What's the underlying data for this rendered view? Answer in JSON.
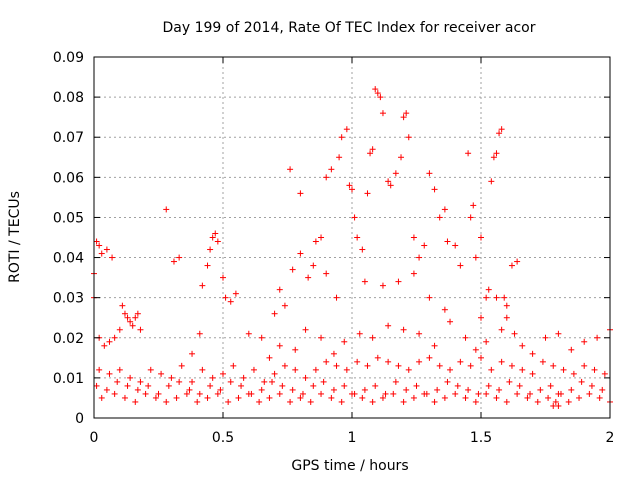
{
  "chart_data": {
    "type": "scatter",
    "title": "Day 199 of 2014, Rate Of TEC Index for receiver acor",
    "xlabel": "GPS time / hours",
    "ylabel": "ROTI / TECUs",
    "xlim": [
      0,
      2
    ],
    "ylim": [
      0,
      0.09
    ],
    "x_ticks": [
      "0",
      "0.5",
      "1",
      "1.5",
      "2"
    ],
    "y_ticks": [
      "0",
      "0.01",
      "0.02",
      "0.03",
      "0.04",
      "0.05",
      "0.06",
      "0.07",
      "0.08",
      "0.09"
    ],
    "grid": true,
    "marker": "plus",
    "series_color": "#ff0000",
    "series": [
      {
        "name": "ROTI",
        "x": [
          0.0,
          0.01,
          0.02,
          0.03,
          0.05,
          0.07,
          0.0,
          0.02,
          0.04,
          0.06,
          0.08,
          0.1,
          0.11,
          0.12,
          0.13,
          0.14,
          0.15,
          0.16,
          0.17,
          0.18,
          0.28,
          0.31,
          0.33,
          0.42,
          0.44,
          0.45,
          0.46,
          0.47,
          0.48,
          0.5,
          0.51,
          0.53,
          0.55,
          0.41,
          0.38,
          0.77,
          0.8,
          0.83,
          0.86,
          0.88,
          0.9,
          0.92,
          0.95,
          0.96,
          0.98,
          0.99,
          1.0,
          1.01,
          1.02,
          1.04,
          1.06,
          1.07,
          1.08,
          1.09,
          1.1,
          1.11,
          1.12,
          1.14,
          1.15,
          1.17,
          1.19,
          1.2,
          1.21,
          1.22,
          1.24,
          1.26,
          1.28,
          1.3,
          1.32,
          1.34,
          1.36,
          1.37,
          1.4,
          1.45,
          1.46,
          1.47,
          1.48,
          1.5,
          1.52,
          1.54,
          1.55,
          1.56,
          1.57,
          1.58,
          1.59,
          1.6,
          1.62,
          1.64,
          0.7,
          0.72,
          0.74,
          0.76,
          0.8,
          0.85,
          0.9,
          0.94,
          1.05,
          1.12,
          1.18,
          1.24,
          1.3,
          1.36,
          1.42,
          1.5,
          1.53,
          1.56,
          1.6,
          0.6,
          0.65,
          0.68,
          0.72,
          0.78,
          0.82,
          0.88,
          0.93,
          0.97,
          1.03,
          1.08,
          1.14,
          1.2,
          1.26,
          1.32,
          1.38,
          1.44,
          1.48,
          1.52,
          1.58,
          1.63,
          1.66,
          1.7,
          1.75,
          1.8,
          1.85,
          1.9,
          1.95,
          2.0,
          0.02,
          0.06,
          0.1,
          0.14,
          0.18,
          0.22,
          0.26,
          0.3,
          0.34,
          0.38,
          0.42,
          0.46,
          0.5,
          0.54,
          0.58,
          0.62,
          0.66,
          0.7,
          0.74,
          0.78,
          0.82,
          0.86,
          0.9,
          0.94,
          0.98,
          1.02,
          1.06,
          1.1,
          1.14,
          1.18,
          1.22,
          1.26,
          1.3,
          1.34,
          1.38,
          1.42,
          1.46,
          1.5,
          1.54,
          1.58,
          1.62,
          1.66,
          1.7,
          1.74,
          1.78,
          1.82,
          1.86,
          1.9,
          1.94,
          1.98,
          0.01,
          0.05,
          0.09,
          0.13,
          0.17,
          0.21,
          0.25,
          0.29,
          0.33,
          0.37,
          0.41,
          0.45,
          0.49,
          0.53,
          0.57,
          0.61,
          0.65,
          0.69,
          0.73,
          0.77,
          0.81,
          0.85,
          0.89,
          0.93,
          0.97,
          1.01,
          1.05,
          1.09,
          1.13,
          1.17,
          1.21,
          1.25,
          1.29,
          1.33,
          1.37,
          1.41,
          1.45,
          1.49,
          1.53,
          1.57,
          1.61,
          1.65,
          1.69,
          1.73,
          1.77,
          1.81,
          1.85,
          1.89,
          1.93,
          1.97,
          0.03,
          0.08,
          0.12,
          0.16,
          0.2,
          0.24,
          0.28,
          0.32,
          0.36,
          0.4,
          0.44,
          0.48,
          0.52,
          0.56,
          0.6,
          0.64,
          0.68,
          0.72,
          0.76,
          0.8,
          0.84,
          0.88,
          0.92,
          0.96,
          1.0,
          1.04,
          1.08,
          1.12,
          1.16,
          1.2,
          1.24,
          1.28,
          1.32,
          1.36,
          1.4,
          1.44,
          1.48,
          1.52,
          1.56,
          1.6,
          1.64,
          1.68,
          1.72,
          1.76,
          1.8,
          1.84,
          1.88,
          1.92,
          1.96,
          2.0,
          1.78,
          1.79,
          1.8
        ],
        "y": [
          0.036,
          0.044,
          0.043,
          0.041,
          0.042,
          0.04,
          0.03,
          0.02,
          0.018,
          0.019,
          0.02,
          0.022,
          0.028,
          0.026,
          0.025,
          0.024,
          0.023,
          0.025,
          0.026,
          0.022,
          0.052,
          0.039,
          0.04,
          0.033,
          0.038,
          0.042,
          0.045,
          0.046,
          0.044,
          0.035,
          0.03,
          0.029,
          0.031,
          0.021,
          0.016,
          0.037,
          0.041,
          0.035,
          0.044,
          0.045,
          0.06,
          0.062,
          0.065,
          0.07,
          0.072,
          0.058,
          0.057,
          0.05,
          0.045,
          0.042,
          0.056,
          0.066,
          0.067,
          0.082,
          0.081,
          0.08,
          0.076,
          0.059,
          0.058,
          0.061,
          0.065,
          0.075,
          0.076,
          0.07,
          0.045,
          0.04,
          0.043,
          0.061,
          0.057,
          0.05,
          0.052,
          0.044,
          0.043,
          0.066,
          0.05,
          0.053,
          0.04,
          0.045,
          0.03,
          0.059,
          0.065,
          0.066,
          0.071,
          0.072,
          0.03,
          0.028,
          0.038,
          0.039,
          0.026,
          0.032,
          0.028,
          0.062,
          0.056,
          0.038,
          0.036,
          0.03,
          0.034,
          0.033,
          0.034,
          0.036,
          0.03,
          0.027,
          0.038,
          0.025,
          0.032,
          0.03,
          0.025,
          0.021,
          0.02,
          0.015,
          0.018,
          0.017,
          0.022,
          0.02,
          0.016,
          0.019,
          0.021,
          0.02,
          0.023,
          0.022,
          0.021,
          0.018,
          0.024,
          0.02,
          0.017,
          0.019,
          0.022,
          0.021,
          0.018,
          0.016,
          0.02,
          0.021,
          0.017,
          0.019,
          0.02,
          0.022,
          0.012,
          0.011,
          0.012,
          0.01,
          0.009,
          0.012,
          0.011,
          0.01,
          0.013,
          0.009,
          0.012,
          0.01,
          0.011,
          0.013,
          0.01,
          0.012,
          0.009,
          0.011,
          0.013,
          0.012,
          0.01,
          0.012,
          0.014,
          0.013,
          0.012,
          0.014,
          0.013,
          0.015,
          0.014,
          0.013,
          0.012,
          0.014,
          0.015,
          0.013,
          0.012,
          0.014,
          0.013,
          0.015,
          0.012,
          0.014,
          0.013,
          0.012,
          0.011,
          0.014,
          0.013,
          0.012,
          0.011,
          0.013,
          0.012,
          0.011,
          0.008,
          0.007,
          0.009,
          0.008,
          0.007,
          0.008,
          0.006,
          0.008,
          0.009,
          0.007,
          0.006,
          0.008,
          0.007,
          0.009,
          0.008,
          0.006,
          0.007,
          0.009,
          0.008,
          0.007,
          0.006,
          0.008,
          0.009,
          0.007,
          0.008,
          0.006,
          0.007,
          0.008,
          0.006,
          0.009,
          0.007,
          0.008,
          0.006,
          0.007,
          0.009,
          0.008,
          0.007,
          0.006,
          0.008,
          0.007,
          0.009,
          0.008,
          0.006,
          0.007,
          0.008,
          0.006,
          0.007,
          0.009,
          0.008,
          0.007,
          0.005,
          0.006,
          0.005,
          0.004,
          0.006,
          0.005,
          0.004,
          0.005,
          0.006,
          0.004,
          0.005,
          0.006,
          0.004,
          0.005,
          0.006,
          0.004,
          0.005,
          0.006,
          0.004,
          0.005,
          0.004,
          0.006,
          0.005,
          0.004,
          0.006,
          0.005,
          0.004,
          0.005,
          0.006,
          0.004,
          0.005,
          0.006,
          0.004,
          0.005,
          0.006,
          0.005,
          0.004,
          0.006,
          0.005,
          0.004,
          0.006,
          0.005,
          0.004,
          0.005,
          0.006,
          0.004,
          0.005,
          0.006,
          0.005,
          0.004,
          0.003,
          0.004,
          0.003
        ]
      }
    ]
  }
}
